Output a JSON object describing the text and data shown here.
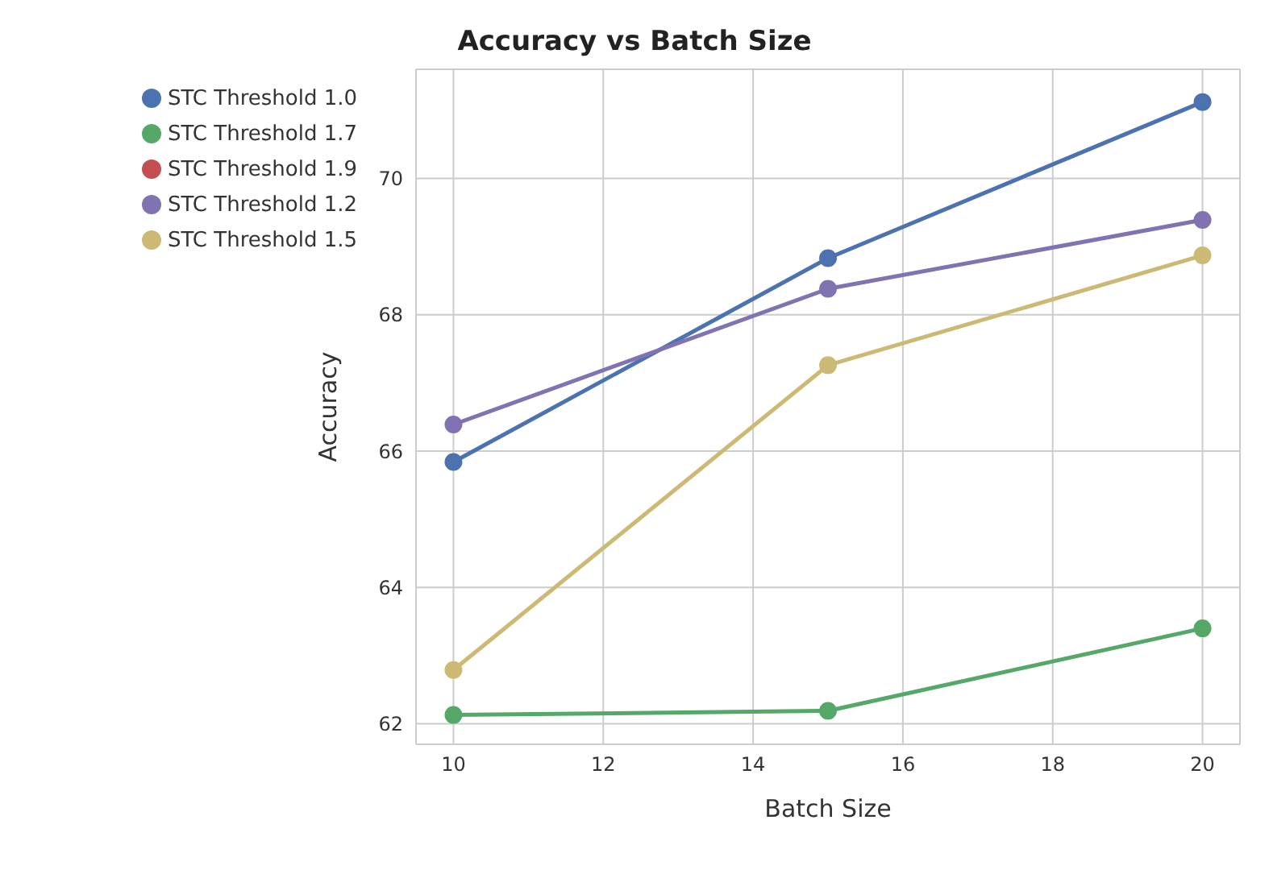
{
  "chart_data": {
    "type": "line",
    "title": "Accuracy vs Batch Size",
    "xlabel": "Batch Size",
    "ylabel": "Accuracy",
    "x": [
      10,
      15,
      20
    ],
    "series": [
      {
        "name": "STC Threshold 1.0",
        "color": "#4c72b0",
        "values": [
          65.84,
          68.83,
          71.12
        ]
      },
      {
        "name": "STC Threshold 1.7",
        "color": "#55a868",
        "values": [
          62.13,
          62.19,
          63.4
        ]
      },
      {
        "name": "STC Threshold 1.9",
        "color": "#c44e52",
        "values": [
          null,
          null,
          null
        ]
      },
      {
        "name": "STC Threshold 1.2",
        "color": "#8172b2",
        "values": [
          66.39,
          68.38,
          69.39
        ]
      },
      {
        "name": "STC Threshold 1.5",
        "color": "#ccb974",
        "values": [
          62.79,
          67.26,
          68.87
        ]
      }
    ],
    "xlim": [
      9.5,
      20.5
    ],
    "xticks": [
      10,
      12,
      14,
      16,
      18,
      20
    ],
    "ylim": [
      61.7,
      71.6
    ],
    "yticks": [
      62,
      64,
      66,
      68,
      70
    ],
    "grid": true,
    "legend": "top left",
    "marker": "circle",
    "line_style": "solid"
  }
}
